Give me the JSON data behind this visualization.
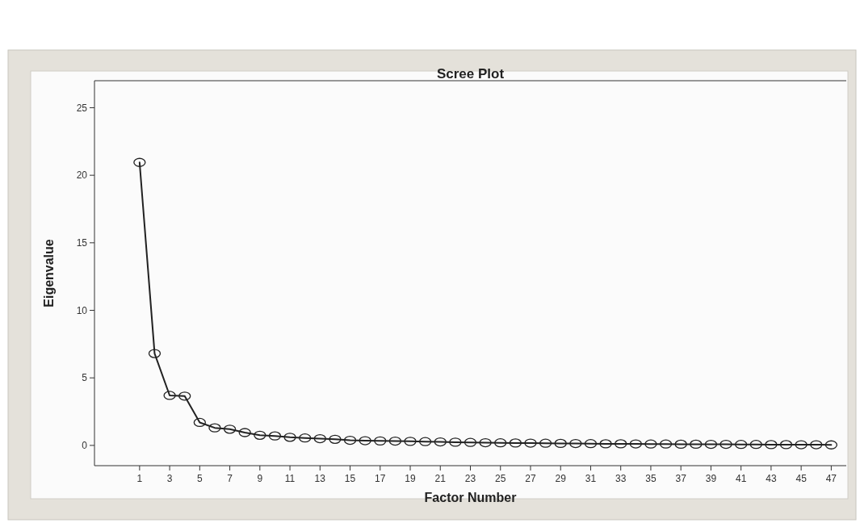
{
  "chart_data": {
    "type": "line",
    "title": "Scree Plot",
    "xlabel": "Factor Number",
    "ylabel": "Eigenvalue",
    "x": [
      1,
      2,
      3,
      4,
      5,
      6,
      7,
      8,
      9,
      10,
      11,
      12,
      13,
      14,
      15,
      16,
      17,
      18,
      19,
      20,
      21,
      22,
      23,
      24,
      25,
      26,
      27,
      28,
      29,
      30,
      31,
      32,
      33,
      34,
      35,
      36,
      37,
      38,
      39,
      40,
      41,
      42,
      43,
      44,
      45,
      46,
      47
    ],
    "series": [
      {
        "color": "#222222",
        "values": [
          20.95,
          6.8,
          3.7,
          3.65,
          1.7,
          1.3,
          1.2,
          0.95,
          0.75,
          0.7,
          0.6,
          0.55,
          0.5,
          0.45,
          0.38,
          0.35,
          0.33,
          0.32,
          0.3,
          0.28,
          0.26,
          0.24,
          0.22,
          0.2,
          0.19,
          0.18,
          0.17,
          0.16,
          0.15,
          0.14,
          0.13,
          0.12,
          0.12,
          0.11,
          0.1,
          0.1,
          0.09,
          0.09,
          0.08,
          0.08,
          0.07,
          0.07,
          0.06,
          0.06,
          0.05,
          0.05,
          0.04
        ]
      }
    ],
    "xlim": [
      -2,
      48
    ],
    "xticks": [
      1,
      3,
      5,
      7,
      9,
      11,
      13,
      15,
      17,
      19,
      21,
      23,
      25,
      27,
      29,
      31,
      33,
      35,
      37,
      39,
      41,
      43,
      45,
      47
    ],
    "ylim": [
      -1.5,
      27
    ],
    "yticks": [
      0,
      5,
      10,
      15,
      20,
      25
    ],
    "marker": "circle",
    "line_style": "solid"
  }
}
